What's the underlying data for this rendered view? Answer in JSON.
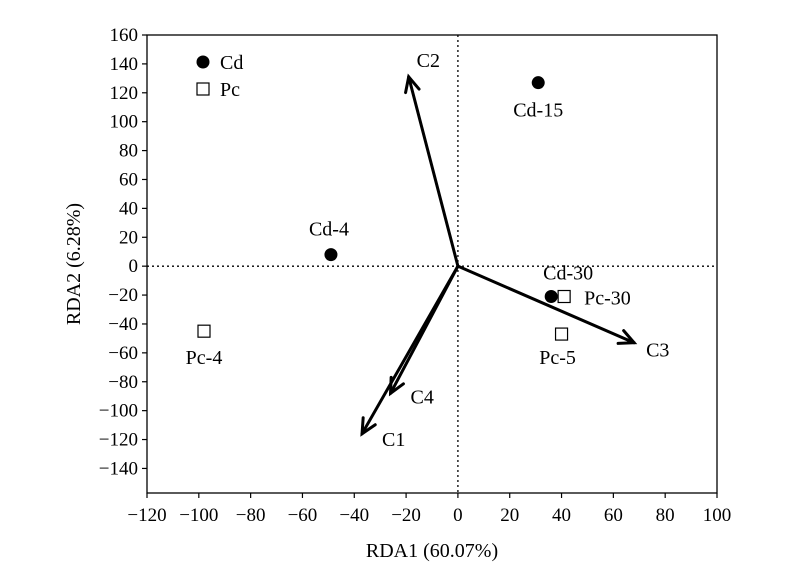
{
  "chart_data": {
    "type": "scatter",
    "xlabel": "RDA1 (60.07%)",
    "ylabel": "RDA2 (6.28%)",
    "xlim": [
      -120,
      100
    ],
    "ylim": [
      -157,
      160
    ],
    "xticks": [
      -120,
      -100,
      -80,
      -60,
      -40,
      -20,
      0,
      20,
      40,
      60,
      80,
      100
    ],
    "yticks": [
      160,
      140,
      120,
      100,
      80,
      60,
      40,
      20,
      0,
      -20,
      -40,
      -60,
      -80,
      -100,
      -120,
      -140
    ],
    "reference_lines": {
      "x": 0,
      "y": 0,
      "style": "dotted"
    },
    "grid": false,
    "legend_position": "top-left",
    "legend": [
      {
        "name": "Cd",
        "marker": "filled-circle"
      },
      {
        "name": "Pc",
        "marker": "open-square"
      }
    ],
    "series": [
      {
        "name": "Cd",
        "marker": "filled-circle",
        "points": [
          {
            "label": "Cd-15",
            "x": 31,
            "y": 127
          },
          {
            "label": "Cd-4",
            "x": -49,
            "y": 8
          },
          {
            "label": "Cd-30",
            "x": 36,
            "y": -21
          }
        ]
      },
      {
        "name": "Pc",
        "marker": "open-square",
        "points": [
          {
            "label": "Pc-4",
            "x": -98,
            "y": -45
          },
          {
            "label": "Pc-30",
            "x": 41,
            "y": -21
          },
          {
            "label": "Pc-5",
            "x": 40,
            "y": -47
          }
        ]
      }
    ],
    "vectors": [
      {
        "label": "C2",
        "x": -19,
        "y": 131
      },
      {
        "label": "C3",
        "x": 68,
        "y": -53
      },
      {
        "label": "C4",
        "x": -26,
        "y": -88
      },
      {
        "label": "C1",
        "x": -37,
        "y": -116
      }
    ]
  }
}
